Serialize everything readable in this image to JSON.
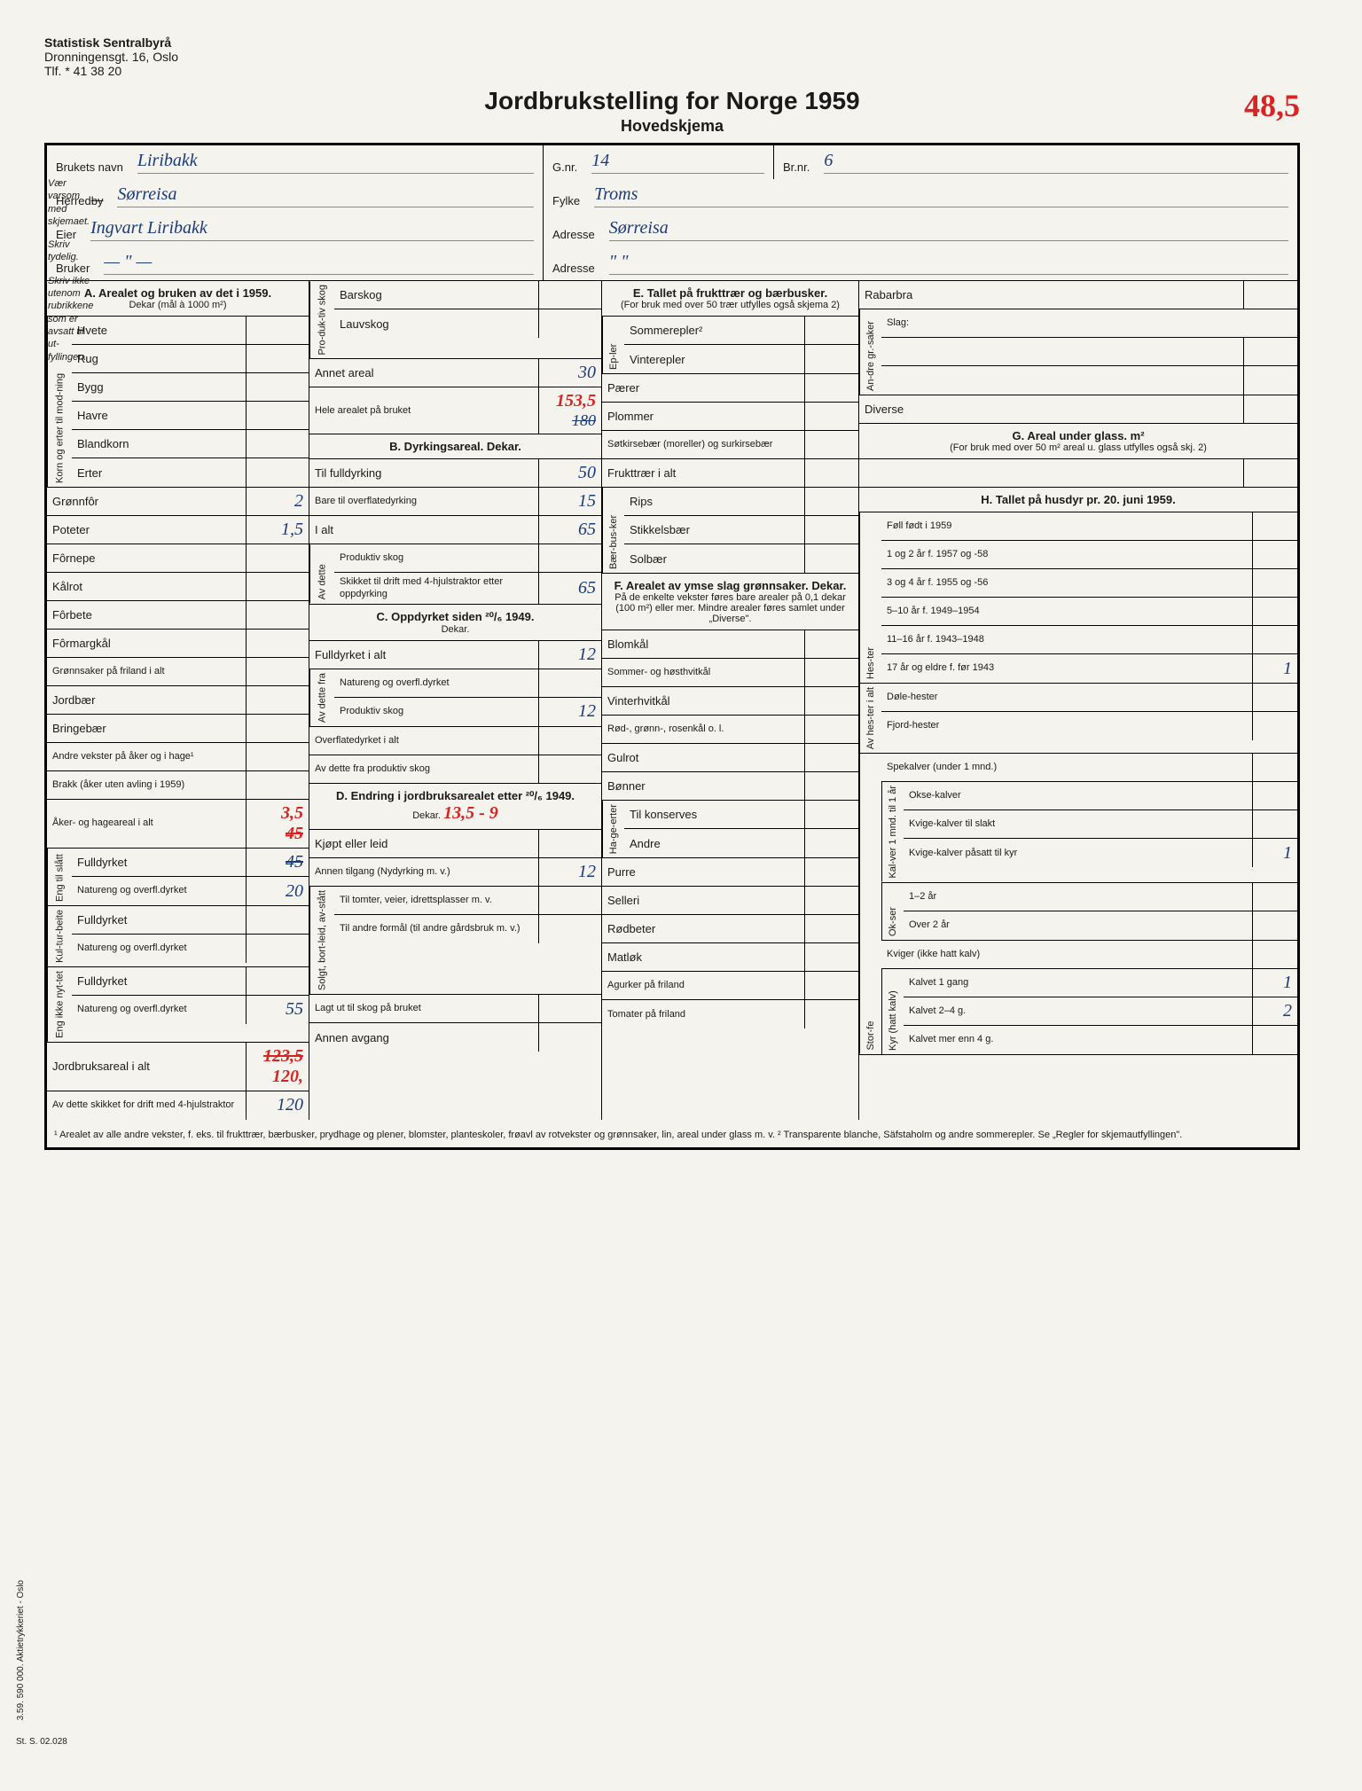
{
  "letterhead": {
    "org": "Statistisk Sentralbyrå",
    "addr1": "Dronningensgt. 16, Oslo",
    "addr2": "Tlf. * 41 38 20"
  },
  "title": "Jordbrukstelling for Norge 1959",
  "subtitle": "Hovedskjema",
  "red_top": "48,5",
  "side": {
    "p1": "Vær varsom med skjemaet.",
    "p2": "Skriv tydelig.",
    "p3": "Skriv ikke utenom rubrikkene som er avsatt til ut-fyllingen."
  },
  "header": {
    "brukets_navn_lbl": "Brukets navn",
    "brukets_navn": "Liribakk",
    "gnr_lbl": "G.nr.",
    "gnr": "14",
    "brnr_lbl": "Br.nr.",
    "brnr": "6",
    "herred_lbl": "Herred",
    "herred_strike": "by",
    "herred": "Sørreisa",
    "fylke_lbl": "Fylke",
    "fylke": "Troms",
    "eier_lbl": "Eier",
    "eier": "Ingvart Liribakk",
    "adresse_lbl": "Adresse",
    "adresse1": "Sørreisa",
    "bruker_lbl": "Bruker",
    "bruker": "— \" —",
    "adresse2": "\" \""
  },
  "A": {
    "title": "A. Arealet og bruken av det i 1959.",
    "sub": "Dekar (mål à 1000 m²)",
    "korn_lbl": "Korn og erter til mod-ning",
    "hvete": "Hvete",
    "rug": "Rug",
    "bygg": "Bygg",
    "havre": "Havre",
    "blandkorn": "Blandkorn",
    "erter": "Erter",
    "gronnfor": "Grønnfôr",
    "gronnfor_v": "2",
    "poteter": "Poteter",
    "poteter_v": "1,5",
    "fornepe": "Fôrnepe",
    "kalrot": "Kålrot",
    "forbete": "Fôrbete",
    "formargkal": "Fôrmargkål",
    "gronnsaker": "Grønnsaker på friland i alt",
    "jordbaer": "Jordbær",
    "bringebaer": "Bringebær",
    "andre_vekster": "Andre vekster på åker og i hage¹",
    "brakk": "Brakk (åker uten avling i 1959)",
    "aker_hage": "Åker- og hageareal i alt",
    "aker_hage_v": "3,5",
    "aker_hage_v2": "45",
    "eng_slatt": "Eng til slått",
    "fulldyrket": "Fulldyrket",
    "fulldyrket_v": "45",
    "natureng": "Natureng og overfl.dyrket",
    "natureng_v": "20",
    "kultur_beite": "Kul-tur-beite",
    "kb_full": "Fulldyrket",
    "kb_nat": "Natureng og overfl.dyrket",
    "eng_ikke": "Eng ikke nyt-tet",
    "ei_full": "Fulldyrket",
    "ei_nat": "Natureng og overfl.dyrket",
    "ei_nat_v": "55",
    "jordbruksareal": "Jordbruksareal i alt",
    "jordbruksareal_v": "123,5",
    "jordbruksareal_v2": "120,",
    "skikket": "Av dette skikket for drift med 4-hjulstraktor",
    "skikket_v": "120"
  },
  "prod_skog": {
    "lbl": "Pro-duk-tiv skog",
    "barskog": "Barskog",
    "lauvskog": "Lauvskog",
    "annet": "Annet areal",
    "annet_v": "30",
    "hele": "Hele arealet på bruket",
    "hele_v": "153,5",
    "hele_v2": "180"
  },
  "B": {
    "title": "B. Dyrkingsareal. Dekar.",
    "fulldyrking": "Til fulldyrking",
    "fulldyrking_v": "50",
    "overflate": "Bare til overflatedyrking",
    "overflate_v": "15",
    "ialt": "I alt",
    "ialt_v": "65",
    "av_dette": "Av dette",
    "prod_skog": "Produktiv skog",
    "skikket_4hjul": "Skikket til drift med 4-hjulstraktor etter oppdyrking",
    "skikket_4hjul_v": "65"
  },
  "C": {
    "title": "C. Oppdyrket siden ²⁰/₆ 1949.",
    "sub": "Dekar.",
    "fulldyrket": "Fulldyrket i alt",
    "fulldyrket_v": "12",
    "av_dette_fra": "Av dette fra",
    "natureng": "Natureng og overfl.dyrket",
    "prod_skog": "Produktiv skog",
    "prod_skog_v": "12",
    "overflate": "Overflatedyrket i alt",
    "av_dette_prod": "Av dette fra produktiv skog"
  },
  "D": {
    "title": "D. Endring i jordbruksarealet etter ²⁰/₆ 1949.",
    "sub": "Dekar.",
    "sub_red": "13,5 - 9",
    "kjopt": "Kjøpt eller leid",
    "annen_tilgang": "Annen tilgang (Nydyrking m. v.)",
    "annen_tilgang_v": "12",
    "solgt": "Solgt, bort-leid, av-stått",
    "tomter": "Til tomter, veier, idrettsplasser m. v.",
    "andre_formal": "Til andre formål (til andre gårdsbruk m. v.)",
    "lagt_ut": "Lagt ut til skog på bruket",
    "annen_avgang": "Annen avgang"
  },
  "E": {
    "title": "E. Tallet på frukttrær og bærbusker.",
    "sub": "(For bruk med over 50 trær utfylles også skjema 2)",
    "epler": "Ep-ler",
    "sommerepler": "Sommerepler²",
    "vinterepler": "Vinterepler",
    "paerer": "Pærer",
    "plommer": "Plommer",
    "sotkirse": "Søtkirsebær (moreller) og surkirsebær",
    "frukt_ialt": "Frukttrær i alt",
    "baer": "Bær-bus-ker",
    "rips": "Rips",
    "stikkels": "Stikkelsbær",
    "solbaer": "Solbær"
  },
  "F": {
    "title": "F. Arealet av ymse slag grønnsaker. Dekar.",
    "sub": "På de enkelte vekster føres bare arealer på 0,1 dekar (100 m²) eller mer. Mindre arealer føres samlet under „Diverse\".",
    "blomkal": "Blomkål",
    "sommer_host": "Sommer- og høsthvitkål",
    "vinter": "Vinterhvitkål",
    "rod_gronn": "Rød-, grønn-, rosenkål o. l.",
    "gulrot": "Gulrot",
    "bonner": "Bønner",
    "hage_erter": "Ha-ge-erter",
    "til_konserves": "Til konserves",
    "andre": "Andre",
    "purre": "Purre",
    "selleri": "Selleri",
    "rodbeter": "Rødbeter",
    "matlok": "Matløk",
    "agurker": "Agurker på friland",
    "tomater": "Tomater på friland"
  },
  "rabarbra": {
    "lbl": "Rabarbra",
    "andre_gr": "An-dre gr.-saker",
    "slag": "Slag:",
    "diverse": "Diverse"
  },
  "G": {
    "title": "G. Areal under glass. m²",
    "sub": "(For bruk med over 50 m² areal u. glass utfylles også skj. 2)"
  },
  "H": {
    "title": "H. Tallet på husdyr pr. 20. juni 1959.",
    "hester": "Hes-ter",
    "foll": "Føll født i 1959",
    "1og2": "1 og 2 år f. 1957 og -58",
    "3og4": "3 og 4 år f. 1955 og -56",
    "5_10": "5–10 år f. 1949–1954",
    "11_16": "11–16 år f. 1943–1948",
    "17eldre": "17 år og eldre f. før 1943",
    "17eldre_v": "1",
    "av_hester": "Av hes-ter i alt",
    "dole": "Døle-hester",
    "fjord": "Fjord-hester",
    "storfe": "Stor-fe",
    "spekalver": "Spekalver (under 1 mnd.)",
    "kalver1": "Kal-ver 1 mnd. til 1 år",
    "okse_kalver": "Okse-kalver",
    "kvige_slakt": "Kvige-kalver til slakt",
    "kvige_pasatt": "Kvige-kalver påsatt til kyr",
    "kvige_pasatt_v": "1",
    "okser": "Ok-ser",
    "1_2ar": "1–2 år",
    "over2": "Over 2 år",
    "kviger_ikke": "Kviger (ikke hatt kalv)",
    "kyr": "Kyr (hatt kalv)",
    "kalvet1": "Kalvet 1 gang",
    "kalvet1_v": "1",
    "kalvet24": "Kalvet 2–4 g.",
    "kalvet24_v": "2",
    "kalvet_mer": "Kalvet mer enn 4 g."
  },
  "footnote": "¹ Arealet av alle andre vekster, f. eks. til frukttrær, bærbusker, prydhage og plener, blomster, planteskoler, frøavl av rotvekster og grønnsaker, lin, areal under glass m. v. ² Transparente blanche, Säfstaholm og andre sommerepler. Se „Regler for skjemautfyllingen\".",
  "margin_code": "3.59. 590 000. Aktietrykkeriet - Oslo",
  "st_code": "St. S. 02.028"
}
